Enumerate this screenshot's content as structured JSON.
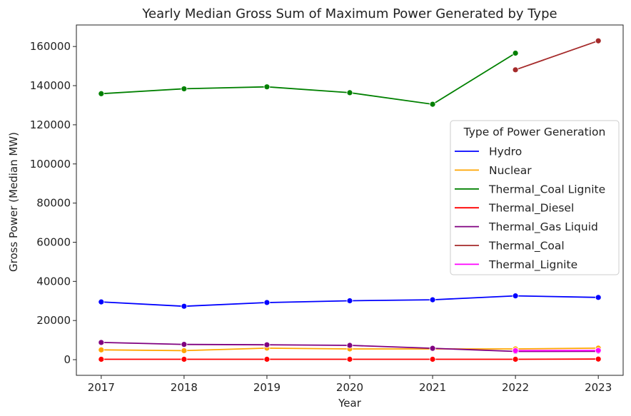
{
  "chart_data": {
    "type": "line",
    "title": "Yearly Median Gross Sum of Maximum Power Generated by Type",
    "xlabel": "Year",
    "ylabel": "Gross Power (Median MW)",
    "x": [
      2017,
      2018,
      2019,
      2020,
      2021,
      2022,
      2023
    ],
    "xlim": [
      2016.7,
      2023.3
    ],
    "ylim": [
      -8000,
      171000
    ],
    "yticks": [
      0,
      20000,
      40000,
      60000,
      80000,
      100000,
      120000,
      140000,
      160000
    ],
    "grid": false,
    "legend": {
      "title": "Type of Power Generation",
      "placement": "center-right"
    },
    "series": [
      {
        "name": "Hydro",
        "color": "#0000ff",
        "points": [
          [
            2017,
            29500
          ],
          [
            2018,
            27300
          ],
          [
            2019,
            29200
          ],
          [
            2020,
            30100
          ],
          [
            2021,
            30600
          ],
          [
            2022,
            32600
          ],
          [
            2023,
            31800
          ]
        ]
      },
      {
        "name": "Nuclear",
        "color": "#ffa500",
        "points": [
          [
            2017,
            5000
          ],
          [
            2018,
            4600
          ],
          [
            2019,
            5900
          ],
          [
            2020,
            5500
          ],
          [
            2021,
            5500
          ],
          [
            2022,
            5500
          ],
          [
            2023,
            5900
          ]
        ]
      },
      {
        "name": "Thermal_Coal Lignite",
        "color": "#008000",
        "points": [
          [
            2017,
            135900
          ],
          [
            2018,
            138400
          ],
          [
            2019,
            139400
          ],
          [
            2020,
            136400
          ],
          [
            2021,
            130500
          ],
          [
            2022,
            156600
          ]
        ]
      },
      {
        "name": "Thermal_Diesel",
        "color": "#ff0000",
        "points": [
          [
            2017,
            200
          ],
          [
            2018,
            200
          ],
          [
            2019,
            200
          ],
          [
            2020,
            200
          ],
          [
            2021,
            200
          ],
          [
            2022,
            200
          ],
          [
            2023,
            300
          ]
        ]
      },
      {
        "name": "Thermal_Gas Liquid",
        "color": "#800080",
        "points": [
          [
            2017,
            8800
          ],
          [
            2018,
            7800
          ],
          [
            2019,
            7600
          ],
          [
            2020,
            7300
          ],
          [
            2021,
            5800
          ],
          [
            2022,
            4200
          ],
          [
            2023,
            4300
          ]
        ]
      },
      {
        "name": "Thermal_Coal",
        "color": "#a52a2a",
        "points": [
          [
            2022,
            148100
          ],
          [
            2023,
            162900
          ]
        ]
      },
      {
        "name": "Thermal_Lignite",
        "color": "#ff00ff",
        "points": [
          [
            2022,
            4600
          ],
          [
            2023,
            4700
          ]
        ]
      }
    ]
  }
}
